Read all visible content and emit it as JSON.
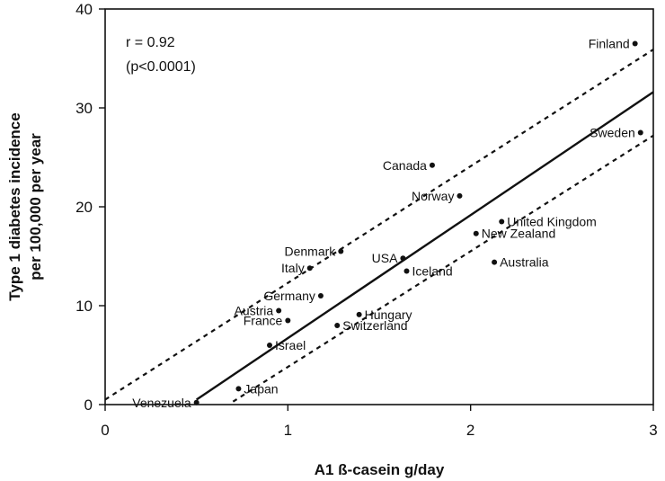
{
  "chart_data": {
    "type": "scatter",
    "title": "",
    "xlabel": "A1 ß-casein g/day",
    "ylabel_lines": [
      "Type 1 diabetes incidence",
      "per 100,000 per year"
    ],
    "xlim": [
      0,
      3
    ],
    "ylim": [
      0,
      40
    ],
    "x_ticks": [
      "0",
      "1",
      "2",
      "3"
    ],
    "y_ticks": [
      "0",
      "10",
      "20",
      "30",
      "40"
    ],
    "grid": false,
    "annotations": [
      "r = 0.92",
      "(p<0.0001)"
    ],
    "fit_line": {
      "x": [
        0.5,
        3.0
      ],
      "y": [
        0.5,
        31.6
      ]
    },
    "confidence_upper": {
      "x": [
        0.0,
        3.0
      ],
      "y": [
        0.5,
        35.9
      ]
    },
    "confidence_lower": {
      "x": [
        0.7,
        3.0
      ],
      "y": [
        0.3,
        27.2
      ]
    },
    "points": [
      {
        "label": "Finland",
        "x": 2.9,
        "y": 36.5,
        "label_side": "left"
      },
      {
        "label": "Sweden",
        "x": 2.93,
        "y": 27.5,
        "label_side": "left"
      },
      {
        "label": "Canada",
        "x": 1.79,
        "y": 24.2,
        "label_side": "left"
      },
      {
        "label": "Norway",
        "x": 1.94,
        "y": 21.1,
        "label_side": "left"
      },
      {
        "label": "United Kingdom",
        "x": 2.17,
        "y": 18.5,
        "label_side": "right"
      },
      {
        "label": "New Zealand",
        "x": 2.03,
        "y": 17.3,
        "label_side": "right"
      },
      {
        "label": "Australia",
        "x": 2.13,
        "y": 14.4,
        "label_side": "right"
      },
      {
        "label": "Denmark",
        "x": 1.29,
        "y": 15.5,
        "label_side": "left"
      },
      {
        "label": "USA",
        "x": 1.63,
        "y": 14.8,
        "label_side": "left"
      },
      {
        "label": "Italy",
        "x": 1.12,
        "y": 13.8,
        "label_side": "left"
      },
      {
        "label": "Iceland",
        "x": 1.65,
        "y": 13.5,
        "label_side": "right"
      },
      {
        "label": "Germany",
        "x": 1.18,
        "y": 11.0,
        "label_side": "left"
      },
      {
        "label": "Austria",
        "x": 0.95,
        "y": 9.5,
        "label_side": "left"
      },
      {
        "label": "France",
        "x": 1.0,
        "y": 8.5,
        "label_side": "left"
      },
      {
        "label": "Hungary",
        "x": 1.39,
        "y": 9.1,
        "label_side": "right"
      },
      {
        "label": "Switzerland",
        "x": 1.27,
        "y": 8.0,
        "label_side": "right"
      },
      {
        "label": "Israel",
        "x": 0.9,
        "y": 6.0,
        "label_side": "right"
      },
      {
        "label": "Japan",
        "x": 0.73,
        "y": 1.6,
        "label_side": "right"
      },
      {
        "label": "Venezuela",
        "x": 0.5,
        "y": 0.2,
        "label_side": "left"
      }
    ]
  }
}
